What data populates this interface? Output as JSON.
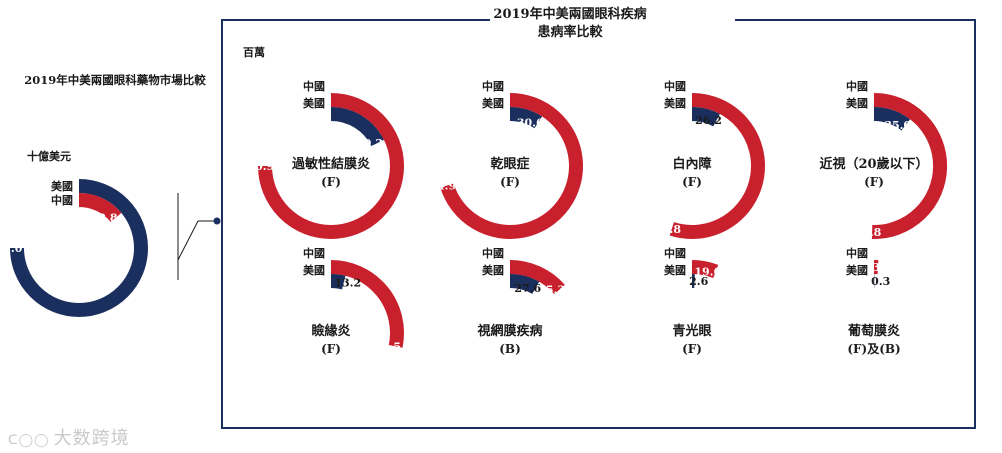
{
  "colors": {
    "china": "#C8202C",
    "us": "#1B2F5E",
    "text": "#1a1a1a",
    "frame": "#1B2F5E"
  },
  "left_panel": {
    "title": "2019年中美兩國眼科藥物市場比較",
    "unit": "十億美元"
  },
  "right_panel": {
    "title_line1": "2019年中美兩國眼科疾病",
    "title_line2": "患病率比較",
    "unit": "百萬"
  },
  "legend": {
    "china": "中國",
    "us": "美國"
  },
  "watermark": "大数跨境",
  "chart_data": [
    {
      "type": "pie",
      "style": "donut",
      "name": "market",
      "label": "",
      "sublabel": "",
      "china": 2.8,
      "us": 15.0,
      "china_label": "2.8",
      "us_label": "15.0"
    },
    {
      "type": "pie",
      "style": "donut",
      "name": "allergic-conjunctivitis",
      "label": "過敏性結膜炎",
      "sublabel": "(F)",
      "china": 250.9,
      "us": 59.2,
      "china_label": "250.9",
      "us_label": "59.2"
    },
    {
      "type": "pie",
      "style": "donut",
      "name": "dry-eye",
      "label": "乾眼症",
      "sublabel": "(F)",
      "china": 234.9,
      "us": 30.6,
      "china_label": "234.9",
      "us_label": "30.6"
    },
    {
      "type": "pie",
      "style": "donut",
      "name": "cataract",
      "label": "白內障",
      "sublabel": "(F)",
      "china": 183.8,
      "us": 26.2,
      "china_label": "183.8",
      "us_label": "26.2"
    },
    {
      "type": "pie",
      "style": "donut",
      "name": "myopia",
      "label": "近視（20歲以下）",
      "sublabel": "(F)",
      "china": 168.8,
      "us": 35.0,
      "china_label": "168.8",
      "us_label": "35.0"
    },
    {
      "type": "pie",
      "style": "donut",
      "name": "blepharitis",
      "label": "瞼緣炎",
      "sublabel": "(F)",
      "china": 94.5,
      "us": 13.2,
      "china_label": "94.5",
      "us_label": "13.2"
    },
    {
      "type": "pie",
      "style": "donut",
      "name": "retinopathy",
      "label": "視網膜疾病",
      "sublabel": "(B)",
      "china": 45.3,
      "us": 27.6,
      "china_label": "45.3",
      "us_label": "27.6"
    },
    {
      "type": "pie",
      "style": "donut",
      "name": "glaucoma",
      "label": "青光眼",
      "sublabel": "(F)",
      "china": 19.6,
      "us": 2.6,
      "china_label": "19.6",
      "us_label": "2.6"
    },
    {
      "type": "pie",
      "style": "donut",
      "name": "uveitis",
      "label": "葡萄膜炎",
      "sublabel": "(F)及(B)",
      "china": 3.2,
      "us": 0.3,
      "china_label": "3.2",
      "us_label": "0.3"
    }
  ]
}
